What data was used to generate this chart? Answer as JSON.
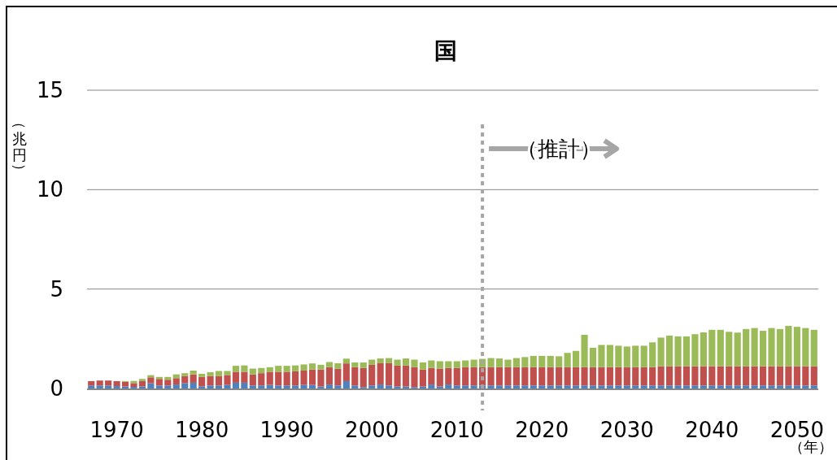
{
  "chart_data": {
    "type": "bar",
    "title": "国",
    "ylabel": "（兆円）",
    "xlabel": "（年）",
    "stacked": true,
    "grid": "y",
    "x": [
      1967,
      1968,
      1969,
      1970,
      1971,
      1972,
      1973,
      1974,
      1975,
      1976,
      1977,
      1978,
      1979,
      1980,
      1981,
      1982,
      1983,
      1984,
      1985,
      1986,
      1987,
      1988,
      1989,
      1990,
      1991,
      1992,
      1993,
      1994,
      1995,
      1996,
      1997,
      1998,
      1999,
      2000,
      2001,
      2002,
      2003,
      2004,
      2005,
      2006,
      2007,
      2008,
      2009,
      2010,
      2011,
      2012,
      2013,
      2014,
      2015,
      2016,
      2017,
      2018,
      2019,
      2020,
      2021,
      2022,
      2023,
      2024,
      2025,
      2026,
      2027,
      2028,
      2029,
      2030,
      2031,
      2032,
      2033,
      2034,
      2035,
      2036,
      2037,
      2038,
      2039,
      2040,
      2041,
      2042,
      2043,
      2044,
      2045,
      2046,
      2047,
      2048,
      2049,
      2050,
      2051,
      2052
    ],
    "xlim": [
      1966.5,
      2052.5
    ],
    "xticks": [
      1970,
      1980,
      1990,
      2000,
      2010,
      2020,
      2030,
      2040,
      2050
    ],
    "ylim": [
      0,
      15
    ],
    "yticks": [
      0,
      5,
      10,
      15
    ],
    "series": [
      {
        "color": "#4f81bd",
        "values": [
          0.15,
          0.15,
          0.15,
          0.12,
          0.1,
          0.08,
          0.1,
          0.26,
          0.15,
          0.15,
          0.2,
          0.27,
          0.29,
          0.11,
          0.15,
          0.15,
          0.18,
          0.29,
          0.29,
          0.15,
          0.15,
          0.18,
          0.15,
          0.15,
          0.15,
          0.18,
          0.18,
          0.1,
          0.2,
          0.15,
          0.37,
          0.15,
          0.07,
          0.15,
          0.2,
          0.15,
          0.1,
          0.1,
          0.07,
          0.1,
          0.2,
          0.1,
          0.2,
          0.15,
          0.15,
          0.15,
          0.15,
          0.15,
          0.15,
          0.15,
          0.15,
          0.15,
          0.15,
          0.15,
          0.15,
          0.15,
          0.15,
          0.15,
          0.15,
          0.15,
          0.15,
          0.15,
          0.15,
          0.15,
          0.15,
          0.15,
          0.15,
          0.15,
          0.15,
          0.15,
          0.15,
          0.15,
          0.15,
          0.15,
          0.15,
          0.15,
          0.15,
          0.15,
          0.15,
          0.15,
          0.15,
          0.15,
          0.15,
          0.15,
          0.15,
          0.15
        ]
      },
      {
        "color": "#c0504d",
        "values": [
          0.22,
          0.25,
          0.25,
          0.25,
          0.23,
          0.19,
          0.27,
          0.3,
          0.33,
          0.29,
          0.32,
          0.35,
          0.42,
          0.47,
          0.47,
          0.47,
          0.5,
          0.55,
          0.55,
          0.56,
          0.62,
          0.66,
          0.69,
          0.69,
          0.71,
          0.72,
          0.77,
          0.85,
          0.87,
          0.85,
          0.89,
          0.92,
          0.96,
          1.04,
          1.07,
          1.12,
          1.05,
          1.05,
          1.0,
          0.85,
          0.83,
          0.9,
          0.83,
          0.88,
          0.92,
          0.92,
          0.92,
          0.92,
          0.92,
          0.92,
          0.92,
          0.92,
          0.92,
          0.92,
          0.92,
          0.92,
          0.92,
          0.92,
          0.92,
          0.92,
          0.92,
          0.92,
          0.92,
          0.92,
          0.92,
          0.92,
          0.92,
          0.97,
          0.97,
          0.97,
          0.97,
          0.97,
          0.97,
          0.97,
          0.97,
          0.97,
          0.97,
          0.97,
          0.97,
          0.97,
          0.97,
          0.97,
          0.97,
          0.97,
          0.97,
          0.97
        ]
      },
      {
        "color": "#9bbb59",
        "values": [
          0,
          0,
          0,
          0,
          0.04,
          0.11,
          0.11,
          0.11,
          0.1,
          0.14,
          0.19,
          0.15,
          0.19,
          0.16,
          0.2,
          0.26,
          0.2,
          0.3,
          0.32,
          0.29,
          0.26,
          0.23,
          0.3,
          0.3,
          0.3,
          0.31,
          0.31,
          0.24,
          0.26,
          0.27,
          0.24,
          0.24,
          0.28,
          0.26,
          0.24,
          0.26,
          0.3,
          0.36,
          0.38,
          0.36,
          0.38,
          0.37,
          0.34,
          0.34,
          0.34,
          0.38,
          0.42,
          0.46,
          0.44,
          0.38,
          0.46,
          0.51,
          0.57,
          0.57,
          0.57,
          0.55,
          0.72,
          0.82,
          1.63,
          0.98,
          1.12,
          1.12,
          1.08,
          1.04,
          1.08,
          1.08,
          1.25,
          1.44,
          1.54,
          1.5,
          1.5,
          1.61,
          1.7,
          1.83,
          1.83,
          1.73,
          1.69,
          1.87,
          1.92,
          1.78,
          1.92,
          1.87,
          2.03,
          1.98,
          1.92,
          1.83
        ]
      }
    ],
    "ref_lines": [
      {
        "axis": "x",
        "value": 2013,
        "label": "（推計）",
        "color": "#a6a6a6",
        "line_style": "dotted"
      }
    ]
  }
}
